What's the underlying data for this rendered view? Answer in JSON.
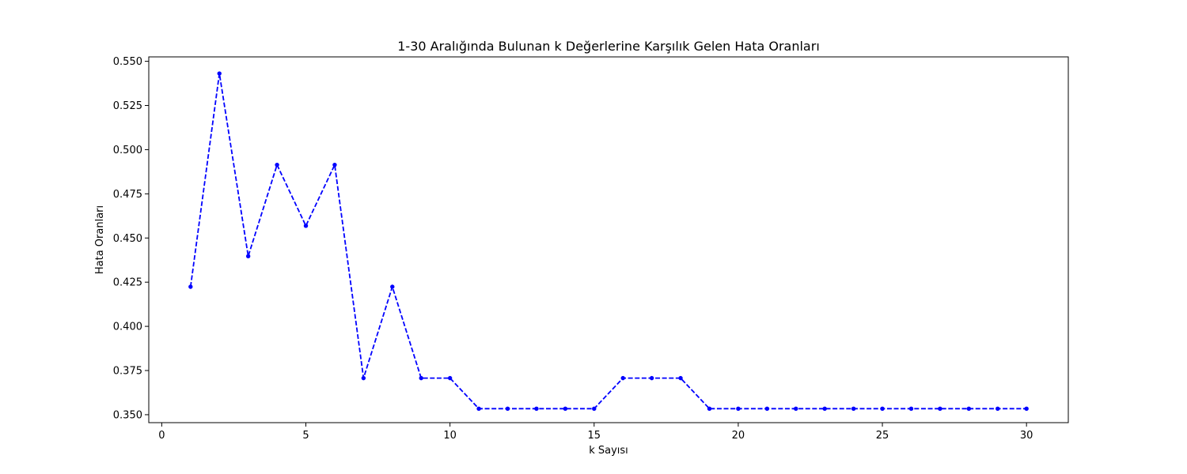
{
  "chart_data": {
    "type": "line",
    "title": "1-30 Aralığında Bulunan k Değerlerine Karşılık Gelen Hata Oranları",
    "xlabel": "k Sayısı",
    "ylabel": "Hata Oranları",
    "xlim": [
      -0.45,
      31.45
    ],
    "ylim": [
      0.3455,
      0.5525
    ],
    "xticks": [
      0,
      5,
      10,
      15,
      20,
      25,
      30
    ],
    "yticks": [
      0.35,
      0.375,
      0.4,
      0.425,
      0.45,
      0.475,
      0.5,
      0.525,
      0.55
    ],
    "ytick_labels": [
      "0.350",
      "0.375",
      "0.400",
      "0.425",
      "0.450",
      "0.475",
      "0.500",
      "0.525",
      "0.550"
    ],
    "grid": false,
    "series": [
      {
        "color": "#0000ff",
        "line_style": "dashed",
        "marker": "circle",
        "x": [
          1,
          2,
          3,
          4,
          5,
          6,
          7,
          8,
          9,
          10,
          11,
          12,
          13,
          14,
          15,
          16,
          17,
          18,
          19,
          20,
          21,
          22,
          23,
          24,
          25,
          26,
          27,
          28,
          29,
          30
        ],
        "values": [
          0.4224,
          0.5431,
          0.4397,
          0.4914,
          0.4569,
          0.4914,
          0.3707,
          0.4224,
          0.3707,
          0.3707,
          0.3534,
          0.3534,
          0.3534,
          0.3534,
          0.3534,
          0.3707,
          0.3707,
          0.3707,
          0.3534,
          0.3534,
          0.3534,
          0.3534,
          0.3534,
          0.3534,
          0.3534,
          0.3534,
          0.3534,
          0.3534,
          0.3534,
          0.3534
        ]
      }
    ]
  }
}
